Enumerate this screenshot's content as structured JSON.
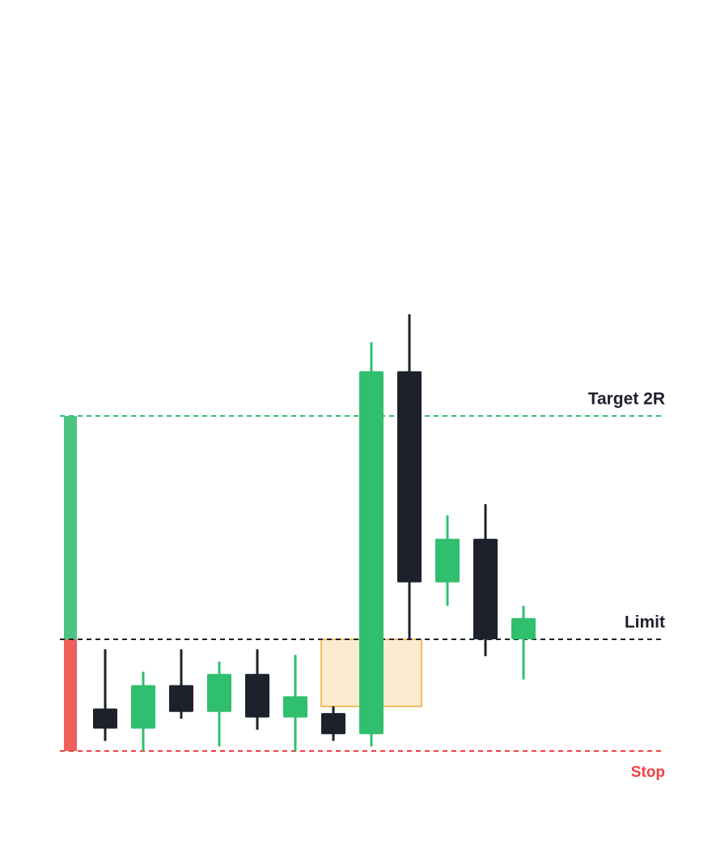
{
  "chart_data": {
    "type": "candlestick",
    "up_color": "#30bf6e",
    "down_color": "#1c212b",
    "candles": [
      {
        "open": 0.38,
        "high": 0.91,
        "low": 0.09,
        "close": 0.2
      },
      {
        "open": 0.2,
        "high": 0.71,
        "low": 0.0,
        "close": 0.59
      },
      {
        "open": 0.59,
        "high": 0.91,
        "low": 0.29,
        "close": 0.35
      },
      {
        "open": 0.35,
        "high": 0.8,
        "low": 0.04,
        "close": 0.69
      },
      {
        "open": 0.69,
        "high": 0.91,
        "low": 0.19,
        "close": 0.3
      },
      {
        "open": 0.3,
        "high": 0.86,
        "low": 0.0,
        "close": 0.49
      },
      {
        "open": 0.34,
        "high": 0.4,
        "low": 0.09,
        "close": 0.15
      },
      {
        "open": 0.15,
        "high": 3.66,
        "low": 0.04,
        "close": 3.4
      },
      {
        "open": 3.4,
        "high": 3.91,
        "low": 1.0,
        "close": 1.51
      },
      {
        "open": 1.51,
        "high": 2.11,
        "low": 1.3,
        "close": 1.9
      },
      {
        "open": 1.9,
        "high": 2.21,
        "low": 0.85,
        "close": 1.0
      },
      {
        "open": 1.0,
        "high": 1.3,
        "low": 0.64,
        "close": 1.19
      }
    ],
    "zone": {
      "high": 1,
      "low": 0.4,
      "fill": "#fbecd0",
      "border": "#f0a830"
    },
    "levels": [
      {
        "label": "Target 2R",
        "value": 3,
        "color": "#30bf6e",
        "label_color": "#1c212b"
      },
      {
        "label": "Limit",
        "value": 1,
        "color": "#1c212b",
        "label_color": "#1c212b"
      },
      {
        "label": "Stop",
        "value": 0,
        "color": "#f04040",
        "label_color": "#f04040"
      }
    ],
    "reward_color": "#4cc47f",
    "risk_color": "#f0605a"
  }
}
